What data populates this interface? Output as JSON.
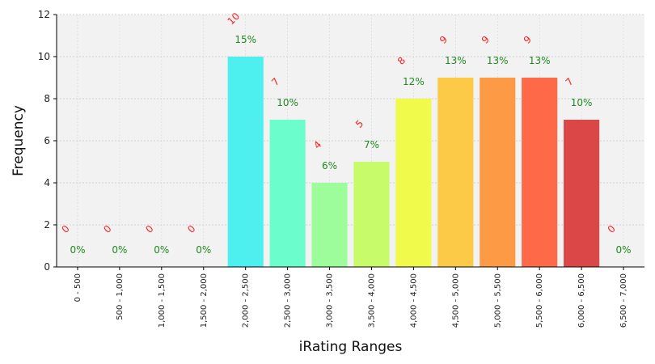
{
  "chart_data": {
    "type": "bar",
    "xlabel": "iRating Ranges",
    "ylabel": "Frequency",
    "ylim": [
      0,
      12
    ],
    "yticks": [
      0,
      2,
      4,
      6,
      8,
      10,
      12
    ],
    "grid": true,
    "categories": [
      "0 - 500",
      "500 - 1,000",
      "1,000 - 1,500",
      "1,500 - 2,000",
      "2,000 - 2,500",
      "2,500 - 3,000",
      "3,000 - 3,500",
      "3,500 - 4,000",
      "4,000 - 4,500",
      "4,500 - 5,000",
      "5,000 - 5,500",
      "5,500 - 6,000",
      "6,000 - 6,500",
      "6,500 - 7,000"
    ],
    "values": [
      0,
      0,
      0,
      0,
      10,
      7,
      4,
      5,
      8,
      9,
      9,
      9,
      7,
      0
    ],
    "percent_labels": [
      "0%",
      "0%",
      "0%",
      "0%",
      "15%",
      "10%",
      "6%",
      "7%",
      "12%",
      "13%",
      "13%",
      "13%",
      "10%",
      "0%"
    ],
    "colors": [
      "#30b9f0",
      "#39c8f0",
      "#42d6ee",
      "#4ae4ec",
      "#4df0ee",
      "#6bfdcb",
      "#9dfd9b",
      "#c8fb6a",
      "#effa4b",
      "#fdca48",
      "#fd9a45",
      "#fe6a48",
      "#db4747",
      "#b23232"
    ]
  }
}
